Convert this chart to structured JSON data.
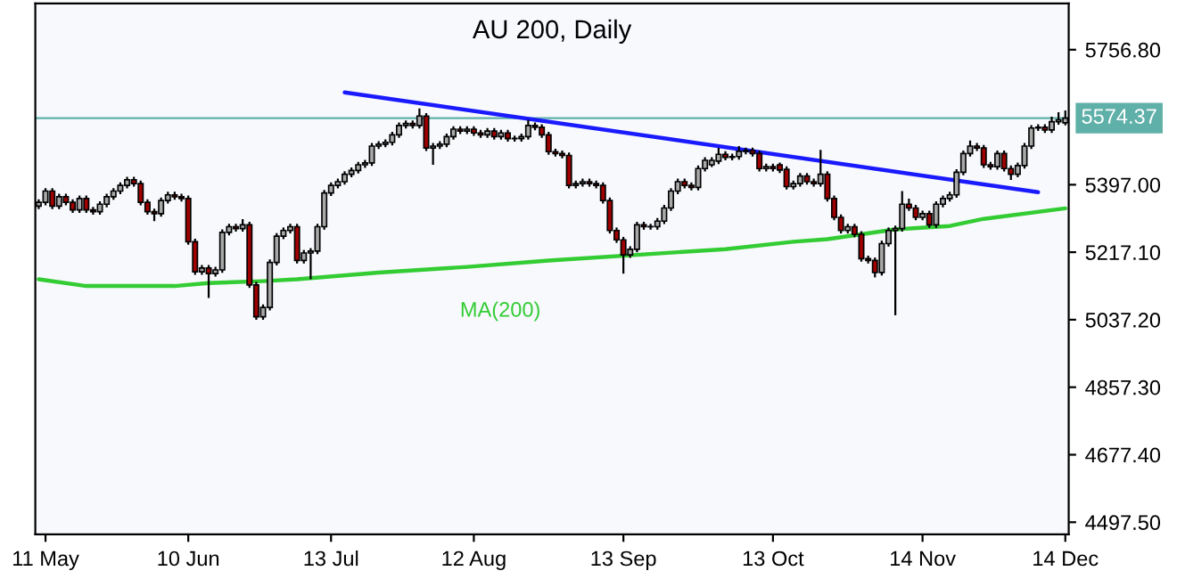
{
  "chart_data": {
    "type": "candlestick",
    "title": "AU 200, Daily",
    "categories": [
      null,
      "11 May",
      null,
      null,
      null,
      null,
      null,
      null,
      null,
      null,
      null,
      null,
      null,
      null,
      null,
      null,
      null,
      null,
      null,
      null,
      null,
      null,
      "10 Jun",
      null,
      null,
      null,
      null,
      null,
      null,
      null,
      null,
      null,
      null,
      null,
      null,
      null,
      null,
      null,
      null,
      null,
      null,
      null,
      null,
      "13 Jul",
      null,
      null,
      null,
      null,
      null,
      null,
      null,
      null,
      null,
      null,
      null,
      null,
      null,
      null,
      null,
      null,
      null,
      null,
      null,
      null,
      "12 Aug",
      null,
      null,
      null,
      null,
      null,
      null,
      null,
      null,
      null,
      null,
      null,
      null,
      null,
      null,
      null,
      null,
      null,
      null,
      null,
      null,
      null,
      "13 Sep",
      null,
      null,
      null,
      null,
      null,
      null,
      null,
      null,
      null,
      null,
      null,
      null,
      null,
      null,
      null,
      null,
      null,
      null,
      null,
      null,
      null,
      "13 Oct",
      null,
      null,
      null,
      null,
      null,
      null,
      null,
      null,
      null,
      null,
      null,
      null,
      null,
      null,
      null,
      null,
      null,
      null,
      null,
      null,
      null,
      "14 Nov",
      null,
      null,
      null,
      null,
      null,
      null,
      null,
      null,
      null,
      null,
      null,
      null,
      null,
      null,
      null,
      null,
      null,
      null,
      null,
      null,
      "14 Dec"
    ],
    "ohlc": [
      [
        5340,
        5358,
        5332,
        5350
      ],
      [
        5350,
        5388,
        5342,
        5380
      ],
      [
        5380,
        5388,
        5332,
        5340
      ],
      [
        5340,
        5373,
        5332,
        5365
      ],
      [
        5365,
        5373,
        5342,
        5350
      ],
      [
        5350,
        5358,
        5322,
        5330
      ],
      [
        5330,
        5368,
        5322,
        5360
      ],
      [
        5360,
        5368,
        5322,
        5330
      ],
      [
        5330,
        5338,
        5317,
        5325
      ],
      [
        5325,
        5353,
        5317,
        5345
      ],
      [
        5345,
        5373,
        5337,
        5365
      ],
      [
        5365,
        5388,
        5357,
        5380
      ],
      [
        5380,
        5403,
        5372,
        5395
      ],
      [
        5395,
        5418,
        5387,
        5410
      ],
      [
        5410,
        5418,
        5392,
        5400
      ],
      [
        5400,
        5408,
        5342,
        5350
      ],
      [
        5350,
        5358,
        5317,
        5325
      ],
      [
        5325,
        5333,
        5300,
        5320
      ],
      [
        5320,
        5363,
        5312,
        5355
      ],
      [
        5355,
        5378,
        5347,
        5370
      ],
      [
        5370,
        5378,
        5357,
        5365
      ],
      [
        5365,
        5373,
        5352,
        5360
      ],
      [
        5360,
        5368,
        5237,
        5245
      ],
      [
        5245,
        5253,
        5157,
        5165
      ],
      [
        5165,
        5183,
        5157,
        5175
      ],
      [
        5175,
        5183,
        5095,
        5160
      ],
      [
        5160,
        5178,
        5152,
        5170
      ],
      [
        5170,
        5278,
        5162,
        5270
      ],
      [
        5270,
        5293,
        5262,
        5285
      ],
      [
        5285,
        5293,
        5272,
        5280
      ],
      [
        5280,
        5305,
        5272,
        5290
      ],
      [
        5290,
        5298,
        5122,
        5130
      ],
      [
        5130,
        5138,
        5037,
        5045
      ],
      [
        5045,
        5078,
        5037,
        5070
      ],
      [
        5070,
        5198,
        5062,
        5190
      ],
      [
        5190,
        5268,
        5182,
        5260
      ],
      [
        5260,
        5283,
        5252,
        5275
      ],
      [
        5275,
        5293,
        5267,
        5285
      ],
      [
        5285,
        5293,
        5187,
        5195
      ],
      [
        5195,
        5223,
        5187,
        5215
      ],
      [
        5215,
        5228,
        5145,
        5220
      ],
      [
        5220,
        5293,
        5212,
        5285
      ],
      [
        5285,
        5383,
        5277,
        5375
      ],
      [
        5375,
        5403,
        5367,
        5395
      ],
      [
        5395,
        5413,
        5387,
        5405
      ],
      [
        5405,
        5433,
        5397,
        5425
      ],
      [
        5425,
        5443,
        5417,
        5435
      ],
      [
        5435,
        5458,
        5427,
        5450
      ],
      [
        5450,
        5463,
        5442,
        5455
      ],
      [
        5455,
        5508,
        5447,
        5500
      ],
      [
        5500,
        5513,
        5492,
        5505
      ],
      [
        5505,
        5518,
        5497,
        5510
      ],
      [
        5510,
        5538,
        5502,
        5530
      ],
      [
        5530,
        5563,
        5522,
        5555
      ],
      [
        5555,
        5568,
        5547,
        5560
      ],
      [
        5560,
        5568,
        5547,
        5555
      ],
      [
        5555,
        5600,
        5547,
        5580
      ],
      [
        5580,
        5588,
        5487,
        5495
      ],
      [
        5495,
        5508,
        5450,
        5500
      ],
      [
        5500,
        5513,
        5492,
        5505
      ],
      [
        5505,
        5533,
        5497,
        5525
      ],
      [
        5525,
        5553,
        5517,
        5545
      ],
      [
        5545,
        5553,
        5532,
        5540
      ],
      [
        5540,
        5553,
        5532,
        5545
      ],
      [
        5545,
        5553,
        5527,
        5535
      ],
      [
        5535,
        5543,
        5522,
        5530
      ],
      [
        5530,
        5548,
        5522,
        5540
      ],
      [
        5540,
        5548,
        5517,
        5525
      ],
      [
        5525,
        5543,
        5517,
        5535
      ],
      [
        5535,
        5543,
        5512,
        5520
      ],
      [
        5520,
        5528,
        5512,
        5520
      ],
      [
        5520,
        5533,
        5512,
        5525
      ],
      [
        5525,
        5570,
        5517,
        5555
      ],
      [
        5555,
        5563,
        5542,
        5550
      ],
      [
        5550,
        5558,
        5522,
        5530
      ],
      [
        5530,
        5538,
        5477,
        5485
      ],
      [
        5485,
        5493,
        5472,
        5480
      ],
      [
        5480,
        5488,
        5467,
        5475
      ],
      [
        5475,
        5483,
        5387,
        5395
      ],
      [
        5395,
        5408,
        5387,
        5400
      ],
      [
        5400,
        5413,
        5392,
        5405
      ],
      [
        5405,
        5413,
        5392,
        5400
      ],
      [
        5400,
        5408,
        5387,
        5395
      ],
      [
        5395,
        5403,
        5347,
        5355
      ],
      [
        5355,
        5363,
        5267,
        5275
      ],
      [
        5275,
        5283,
        5242,
        5250
      ],
      [
        5250,
        5258,
        5160,
        5210
      ],
      [
        5210,
        5233,
        5202,
        5225
      ],
      [
        5225,
        5298,
        5217,
        5290
      ],
      [
        5290,
        5298,
        5277,
        5285
      ],
      [
        5285,
        5293,
        5277,
        5285
      ],
      [
        5285,
        5308,
        5277,
        5300
      ],
      [
        5300,
        5343,
        5292,
        5335
      ],
      [
        5335,
        5388,
        5327,
        5380
      ],
      [
        5380,
        5413,
        5372,
        5405
      ],
      [
        5405,
        5413,
        5387,
        5395
      ],
      [
        5395,
        5403,
        5382,
        5390
      ],
      [
        5390,
        5448,
        5382,
        5440
      ],
      [
        5440,
        5470,
        5432,
        5462
      ],
      [
        5450,
        5470,
        5444,
        5462
      ],
      [
        5460,
        5495,
        5452,
        5478
      ],
      [
        5478,
        5486,
        5462,
        5470
      ],
      [
        5470,
        5480,
        5462,
        5472
      ],
      [
        5472,
        5500,
        5464,
        5486
      ],
      [
        5486,
        5496,
        5478,
        5488
      ],
      [
        5488,
        5496,
        5472,
        5480
      ],
      [
        5480,
        5488,
        5432,
        5440
      ],
      [
        5440,
        5453,
        5432,
        5445
      ],
      [
        5445,
        5453,
        5432,
        5440
      ],
      [
        5450,
        5456,
        5428,
        5436
      ],
      [
        5438,
        5446,
        5384,
        5392
      ],
      [
        5392,
        5408,
        5384,
        5400
      ],
      [
        5400,
        5428,
        5392,
        5420
      ],
      [
        5420,
        5428,
        5397,
        5405
      ],
      [
        5405,
        5413,
        5392,
        5400
      ],
      [
        5400,
        5490,
        5392,
        5425
      ],
      [
        5425,
        5433,
        5352,
        5360
      ],
      [
        5360,
        5368,
        5302,
        5310
      ],
      [
        5310,
        5318,
        5267,
        5275
      ],
      [
        5275,
        5293,
        5267,
        5285
      ],
      [
        5285,
        5293,
        5257,
        5265
      ],
      [
        5265,
        5273,
        5192,
        5200
      ],
      [
        5200,
        5208,
        5187,
        5195
      ],
      [
        5195,
        5203,
        5150,
        5163
      ],
      [
        5163,
        5248,
        5155,
        5240
      ],
      [
        5240,
        5283,
        5232,
        5275
      ],
      [
        5275,
        5288,
        5049,
        5280
      ],
      [
        5280,
        5380,
        5272,
        5345
      ],
      [
        5345,
        5360,
        5327,
        5335
      ],
      [
        5335,
        5343,
        5302,
        5310
      ],
      [
        5310,
        5328,
        5302,
        5320
      ],
      [
        5320,
        5328,
        5282,
        5290
      ],
      [
        5290,
        5353,
        5282,
        5345
      ],
      [
        5345,
        5368,
        5337,
        5360
      ],
      [
        5360,
        5378,
        5352,
        5370
      ],
      [
        5370,
        5438,
        5362,
        5430
      ],
      [
        5430,
        5488,
        5422,
        5480
      ],
      [
        5480,
        5515,
        5472,
        5500
      ],
      [
        5500,
        5508,
        5487,
        5495
      ],
      [
        5495,
        5503,
        5442,
        5450
      ],
      [
        5450,
        5458,
        5437,
        5445
      ],
      [
        5445,
        5488,
        5437,
        5480
      ],
      [
        5480,
        5488,
        5432,
        5440
      ],
      [
        5440,
        5448,
        5410,
        5425
      ],
      [
        5425,
        5456,
        5417,
        5448
      ],
      [
        5448,
        5508,
        5440,
        5500
      ],
      [
        5500,
        5556,
        5492,
        5548
      ],
      [
        5548,
        5558,
        5540,
        5550
      ],
      [
        5550,
        5558,
        5535,
        5543
      ],
      [
        5543,
        5578,
        5535,
        5565
      ],
      [
        5565,
        5590,
        5557,
        5570
      ],
      [
        5562,
        5595,
        5555,
        5574.37
      ]
    ],
    "series": [
      {
        "type": "line",
        "color": "#33cc33",
        "values": [
          5145,
          null,
          null,
          null,
          null,
          null,
          null,
          5127,
          null,
          null,
          null,
          null,
          null,
          null,
          null,
          null,
          null,
          null,
          null,
          null,
          5127,
          null,
          null,
          null,
          null,
          5135,
          null,
          null,
          null,
          null,
          null,
          null,
          null,
          5140,
          null,
          null,
          null,
          null,
          5145,
          null,
          null,
          null,
          null,
          null,
          null,
          null,
          null,
          null,
          null,
          null,
          5163,
          null,
          null,
          null,
          null,
          null,
          null,
          null,
          null,
          null,
          null,
          null,
          null,
          5178,
          null,
          null,
          null,
          null,
          null,
          null,
          null,
          null,
          null,
          null,
          null,
          5195,
          null,
          null,
          null,
          null,
          null,
          null,
          null,
          null,
          null,
          null,
          null,
          null,
          null,
          null,
          null,
          null,
          null,
          5216,
          null,
          null,
          null,
          null,
          null,
          null,
          null,
          5225,
          null,
          null,
          null,
          null,
          null,
          null,
          null,
          null,
          null,
          5245,
          null,
          null,
          null,
          null,
          5252,
          null,
          null,
          null,
          null,
          null,
          null,
          null,
          null,
          null,
          5278,
          null,
          null,
          null,
          null,
          null,
          null,
          null,
          5287,
          null,
          null,
          null,
          null,
          5306,
          null,
          null,
          null,
          null,
          null,
          null,
          null,
          null,
          null,
          null,
          null,
          5334
        ]
      },
      {
        "type": "line",
        "color": "#1a1aff",
        "values": [
          null,
          null,
          null,
          null,
          null,
          null,
          null,
          null,
          null,
          null,
          null,
          null,
          null,
          null,
          null,
          null,
          null,
          null,
          null,
          null,
          null,
          null,
          null,
          null,
          null,
          null,
          null,
          null,
          null,
          null,
          null,
          null,
          null,
          null,
          null,
          null,
          null,
          null,
          null,
          null,
          null,
          null,
          null,
          null,
          null,
          5643,
          null,
          null,
          null,
          null,
          null,
          null,
          null,
          null,
          null,
          null,
          null,
          null,
          null,
          null,
          null,
          null,
          null,
          null,
          null,
          null,
          null,
          null,
          null,
          null,
          null,
          null,
          null,
          null,
          null,
          null,
          null,
          null,
          null,
          null,
          null,
          null,
          null,
          null,
          null,
          null,
          null,
          null,
          null,
          null,
          null,
          null,
          null,
          null,
          null,
          null,
          null,
          null,
          null,
          null,
          null,
          null,
          null,
          null,
          null,
          null,
          null,
          null,
          null,
          null,
          null,
          null,
          null,
          null,
          null,
          null,
          null,
          null,
          null,
          null,
          null,
          null,
          null,
          null,
          null,
          null,
          null,
          null,
          null,
          null,
          null,
          null,
          null,
          null,
          null,
          null,
          null,
          null,
          null,
          null,
          null,
          null,
          null,
          null,
          null,
          null,
          null,
          5377,
          null,
          null,
          null,
          null
        ]
      }
    ],
    "annotations": [
      "MA(200)"
    ],
    "ref_lines": [
      {
        "axis": "y",
        "value": 5574.37,
        "label": "5574.37",
        "color": "#5fb0a8"
      }
    ],
    "ylim": [
      4465,
      5880
    ],
    "yticks": [
      {
        "value": 4497.5,
        "label": "4497.50"
      },
      {
        "value": 4677.4,
        "label": "4677.40"
      },
      {
        "value": 4857.3,
        "label": "4857.30"
      },
      {
        "value": 5037.2,
        "label": "5037.20"
      },
      {
        "value": 5217.1,
        "label": "5217.10"
      },
      {
        "value": 5397,
        "label": "5397.00"
      },
      {
        "value": 5756.8,
        "label": "5756.80"
      }
    ],
    "grid": false,
    "legend": false
  }
}
